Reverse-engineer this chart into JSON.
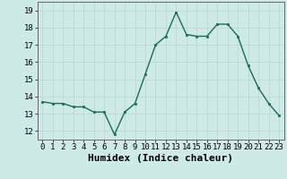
{
  "x": [
    0,
    1,
    2,
    3,
    4,
    5,
    6,
    7,
    8,
    9,
    10,
    11,
    12,
    13,
    14,
    15,
    16,
    17,
    18,
    19,
    20,
    21,
    22,
    23
  ],
  "y": [
    13.7,
    13.6,
    13.6,
    13.4,
    13.4,
    13.1,
    13.1,
    11.8,
    13.1,
    13.6,
    15.3,
    17.0,
    17.5,
    18.9,
    17.6,
    17.5,
    17.5,
    18.2,
    18.2,
    17.5,
    15.8,
    14.5,
    13.6,
    12.9
  ],
  "xlabel": "Humidex (Indice chaleur)",
  "ylim": [
    11.5,
    19.5
  ],
  "xlim": [
    -0.5,
    23.5
  ],
  "yticks": [
    12,
    13,
    14,
    15,
    16,
    17,
    18,
    19
  ],
  "xtick_labels": [
    "0",
    "1",
    "2",
    "3",
    "4",
    "5",
    "6",
    "7",
    "8",
    "9",
    "10",
    "11",
    "12",
    "13",
    "14",
    "15",
    "16",
    "17",
    "18",
    "19",
    "20",
    "21",
    "22",
    "23"
  ],
  "line_color": "#1a6b5a",
  "marker_color": "#1a6b5a",
  "bg_color": "#ceeae7",
  "grid_color": "#c0d8d4",
  "xlabel_fontsize": 8,
  "tick_fontsize": 6.5
}
